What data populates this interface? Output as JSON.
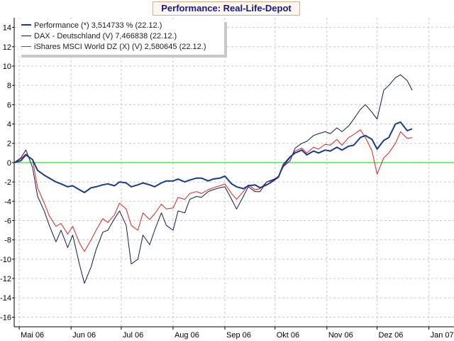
{
  "chart_data": {
    "type": "line",
    "title": "Performance: Real-Life-Depot",
    "xlabel": "",
    "ylabel": "",
    "x_tick_labels": [
      "Mai 06",
      "Jun 06",
      "Jul 06",
      "Aug 06",
      "Sep 06",
      "Okt 06",
      "Nov 06",
      "Dez 06",
      "Jan 07"
    ],
    "x_tick_dates": [
      "2006-05-01",
      "2006-06-01",
      "2006-07-01",
      "2006-08-01",
      "2006-09-01",
      "2006-10-01",
      "2006-11-01",
      "2006-12-01",
      "2007-01-01"
    ],
    "xlim": [
      "2006-04-28",
      "2007-01-16"
    ],
    "ylim": [
      -17,
      15
    ],
    "y_ticks": [
      14,
      12,
      10,
      8,
      6,
      4,
      2,
      0,
      -2,
      -4,
      -6,
      -8,
      -10,
      -12,
      -14,
      -16
    ],
    "grid": true,
    "zero_line_color": "#22cc22",
    "legend_position": "top-left",
    "series": [
      {
        "name": "Performance (*) 3,514733 % (22.12.)",
        "color": "#1a3a8c",
        "x": [
          "2006-04-28",
          "2006-05-02",
          "2006-05-05",
          "2006-05-09",
          "2006-05-12",
          "2006-05-16",
          "2006-05-19",
          "2006-05-23",
          "2006-05-26",
          "2006-05-30",
          "2006-06-02",
          "2006-06-06",
          "2006-06-09",
          "2006-06-13",
          "2006-06-16",
          "2006-06-20",
          "2006-06-23",
          "2006-06-27",
          "2006-06-30",
          "2006-07-04",
          "2006-07-07",
          "2006-07-11",
          "2006-07-14",
          "2006-07-18",
          "2006-07-21",
          "2006-07-25",
          "2006-07-28",
          "2006-08-01",
          "2006-08-04",
          "2006-08-08",
          "2006-08-11",
          "2006-08-15",
          "2006-08-18",
          "2006-08-22",
          "2006-08-25",
          "2006-08-29",
          "2006-09-01",
          "2006-09-05",
          "2006-09-08",
          "2006-09-12",
          "2006-09-15",
          "2006-09-19",
          "2006-09-22",
          "2006-09-26",
          "2006-09-29",
          "2006-10-03",
          "2006-10-06",
          "2006-10-10",
          "2006-10-13",
          "2006-10-17",
          "2006-10-20",
          "2006-10-24",
          "2006-10-27",
          "2006-10-31",
          "2006-11-03",
          "2006-11-07",
          "2006-11-10",
          "2006-11-14",
          "2006-11-17",
          "2006-11-21",
          "2006-11-24",
          "2006-11-28",
          "2006-12-01",
          "2006-12-05",
          "2006-12-08",
          "2006-12-12",
          "2006-12-15",
          "2006-12-19",
          "2006-12-22"
        ],
        "values": [
          0.0,
          0.2,
          0.8,
          0.3,
          -0.8,
          -1.3,
          -1.6,
          -2.0,
          -2.2,
          -2.5,
          -2.4,
          -2.8,
          -3.1,
          -2.6,
          -2.5,
          -2.3,
          -2.2,
          -2.4,
          -2.0,
          -2.1,
          -2.5,
          -2.3,
          -2.1,
          -2.3,
          -2.5,
          -2.1,
          -1.9,
          -1.9,
          -1.7,
          -2.0,
          -1.8,
          -1.6,
          -1.6,
          -1.9,
          -1.7,
          -1.6,
          -1.4,
          -2.2,
          -2.5,
          -2.7,
          -2.4,
          -2.3,
          -2.6,
          -2.3,
          -2.0,
          -1.5,
          -0.2,
          0.6,
          1.0,
          1.3,
          0.8,
          1.2,
          1.0,
          1.3,
          1.2,
          1.6,
          1.3,
          1.7,
          1.8,
          2.6,
          2.8,
          2.4,
          1.4,
          2.3,
          2.6,
          4.0,
          4.2,
          3.3,
          3.5
        ]
      },
      {
        "name": "DAX - Deutschland (V) 7,466838 (22.12.)",
        "color": "#101850",
        "x": [
          "2006-04-28",
          "2006-05-02",
          "2006-05-05",
          "2006-05-09",
          "2006-05-12",
          "2006-05-16",
          "2006-05-19",
          "2006-05-23",
          "2006-05-26",
          "2006-05-30",
          "2006-06-02",
          "2006-06-06",
          "2006-06-09",
          "2006-06-13",
          "2006-06-16",
          "2006-06-20",
          "2006-06-23",
          "2006-06-27",
          "2006-06-30",
          "2006-07-04",
          "2006-07-07",
          "2006-07-11",
          "2006-07-14",
          "2006-07-18",
          "2006-07-21",
          "2006-07-25",
          "2006-07-28",
          "2006-08-01",
          "2006-08-04",
          "2006-08-08",
          "2006-08-11",
          "2006-08-15",
          "2006-08-18",
          "2006-08-22",
          "2006-08-25",
          "2006-08-29",
          "2006-09-01",
          "2006-09-05",
          "2006-09-08",
          "2006-09-12",
          "2006-09-15",
          "2006-09-19",
          "2006-09-22",
          "2006-09-26",
          "2006-09-29",
          "2006-10-03",
          "2006-10-06",
          "2006-10-10",
          "2006-10-13",
          "2006-10-17",
          "2006-10-20",
          "2006-10-24",
          "2006-10-27",
          "2006-10-31",
          "2006-11-03",
          "2006-11-07",
          "2006-11-10",
          "2006-11-14",
          "2006-11-17",
          "2006-11-21",
          "2006-11-24",
          "2006-11-28",
          "2006-12-01",
          "2006-12-05",
          "2006-12-08",
          "2006-12-12",
          "2006-12-15",
          "2006-12-19",
          "2006-12-22"
        ],
        "values": [
          0.0,
          0.5,
          1.3,
          -0.5,
          -3.5,
          -5.0,
          -6.5,
          -8.2,
          -7.0,
          -8.8,
          -7.5,
          -10.5,
          -12.5,
          -10.8,
          -9.0,
          -7.2,
          -7.0,
          -5.8,
          -5.0,
          -6.5,
          -10.5,
          -10.0,
          -7.5,
          -8.5,
          -7.0,
          -5.2,
          -6.5,
          -7.0,
          -5.0,
          -5.2,
          -3.8,
          -3.5,
          -3.6,
          -3.0,
          -2.8,
          -2.6,
          -2.5,
          -3.8,
          -4.8,
          -3.5,
          -2.5,
          -3.0,
          -3.0,
          -2.0,
          -1.8,
          -1.5,
          -0.4,
          0.2,
          1.5,
          2.0,
          2.2,
          2.8,
          3.0,
          3.2,
          3.0,
          3.6,
          3.2,
          3.8,
          4.5,
          5.5,
          6.0,
          5.2,
          4.5,
          7.5,
          8.0,
          8.8,
          9.1,
          8.5,
          7.5
        ]
      },
      {
        "name": "iShares MSCI World DZ (X) (V) 2,580645 (22.12.)",
        "color": "#dd2020",
        "x": [
          "2006-04-28",
          "2006-05-02",
          "2006-05-05",
          "2006-05-09",
          "2006-05-12",
          "2006-05-16",
          "2006-05-19",
          "2006-05-23",
          "2006-05-26",
          "2006-05-30",
          "2006-06-02",
          "2006-06-06",
          "2006-06-09",
          "2006-06-13",
          "2006-06-16",
          "2006-06-20",
          "2006-06-23",
          "2006-06-27",
          "2006-06-30",
          "2006-07-04",
          "2006-07-07",
          "2006-07-11",
          "2006-07-14",
          "2006-07-18",
          "2006-07-21",
          "2006-07-25",
          "2006-07-28",
          "2006-08-01",
          "2006-08-04",
          "2006-08-08",
          "2006-08-11",
          "2006-08-15",
          "2006-08-18",
          "2006-08-22",
          "2006-08-25",
          "2006-08-29",
          "2006-09-01",
          "2006-09-05",
          "2006-09-08",
          "2006-09-12",
          "2006-09-15",
          "2006-09-19",
          "2006-09-22",
          "2006-09-26",
          "2006-09-29",
          "2006-10-03",
          "2006-10-06",
          "2006-10-10",
          "2006-10-13",
          "2006-10-17",
          "2006-10-20",
          "2006-10-24",
          "2006-10-27",
          "2006-10-31",
          "2006-11-03",
          "2006-11-07",
          "2006-11-10",
          "2006-11-14",
          "2006-11-17",
          "2006-11-21",
          "2006-11-24",
          "2006-11-28",
          "2006-12-01",
          "2006-12-05",
          "2006-12-08",
          "2006-12-12",
          "2006-12-15",
          "2006-12-19",
          "2006-12-22"
        ],
        "values": [
          0.0,
          0.4,
          0.9,
          0.3,
          -2.6,
          -4.2,
          -5.5,
          -6.6,
          -6.3,
          -7.4,
          -6.6,
          -8.3,
          -9.2,
          -8.0,
          -7.0,
          -5.8,
          -6.2,
          -5.4,
          -4.2,
          -4.8,
          -6.5,
          -7.0,
          -5.2,
          -5.9,
          -5.3,
          -4.3,
          -4.8,
          -4.7,
          -3.6,
          -3.8,
          -3.2,
          -3.0,
          -3.2,
          -2.8,
          -2.6,
          -2.4,
          -2.2,
          -3.2,
          -3.8,
          -3.0,
          -2.3,
          -2.8,
          -2.7,
          -2.0,
          -1.9,
          -1.4,
          -0.4,
          0.5,
          1.2,
          1.5,
          1.0,
          1.6,
          1.4,
          1.9,
          1.8,
          2.4,
          1.8,
          2.6,
          2.9,
          3.4,
          2.6,
          1.2,
          -1.2,
          0.5,
          1.0,
          2.0,
          3.2,
          2.5,
          2.6
        ]
      }
    ]
  }
}
